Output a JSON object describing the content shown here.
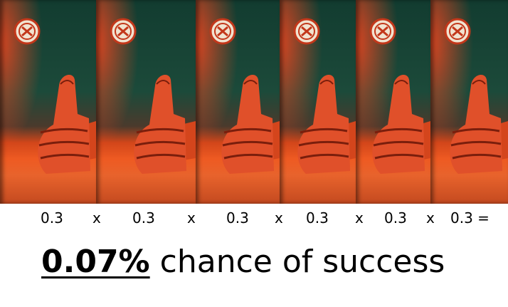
{
  "tiles": [
    {
      "left": 0,
      "width": 135
    },
    {
      "left": 135,
      "width": 140
    },
    {
      "left": 275,
      "width": 118
    },
    {
      "left": 393,
      "width": 107
    },
    {
      "left": 500,
      "width": 105
    },
    {
      "left": 605,
      "width": 109
    }
  ],
  "equation": {
    "terms": [
      "0.3",
      "x",
      "0.3",
      "x",
      "0.3",
      "x",
      "0.3",
      "x",
      "0.3",
      "x",
      "0.3 ="
    ]
  },
  "result": {
    "percentage": "0.07%",
    "text": "chance of success"
  },
  "colors": {
    "background_top": "#123c30",
    "accent_red": "#ee5a22",
    "text": "#000000"
  },
  "icons": [
    "thumbs-up-hand",
    "badge-logo"
  ]
}
